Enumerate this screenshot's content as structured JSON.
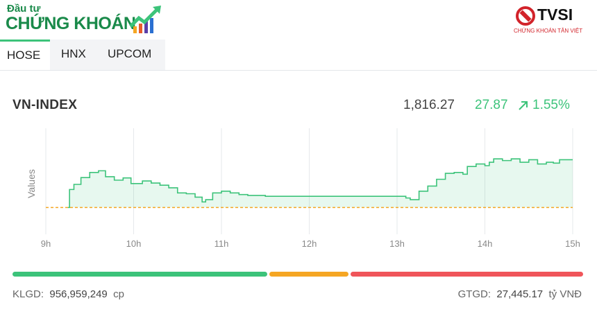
{
  "header": {
    "logo_small": "Đầu tư",
    "logo_big": "CHỨNG KHOÁN",
    "brand_name": "TVSI",
    "brand_sub": "CHỨNG KHOÁN TÂN VIỆT"
  },
  "tabs": [
    {
      "label": "HOSE",
      "active": true
    },
    {
      "label": "HNX",
      "active": false
    },
    {
      "label": "UPCOM",
      "active": false
    }
  ],
  "index": {
    "name": "VN-INDEX",
    "price": "1,816.27",
    "change": "27.87",
    "percent": "1.55%",
    "direction": "up"
  },
  "colors": {
    "up": "#3cc37a",
    "reference": "#f5a623",
    "down": "#f0555a"
  },
  "breadth": {
    "advance_fraction": 0.45,
    "unchanged_fraction": 0.14,
    "decline_fraction": 0.41
  },
  "footer": {
    "volume_label": "KLGD:",
    "volume_value": "956,959,249",
    "volume_unit": "cp",
    "value_label": "GTGD:",
    "value_value": "27,445.17",
    "value_unit": "tỷ VNĐ"
  },
  "chart_data": {
    "type": "area",
    "ylabel": "Values",
    "x_ticks": [
      "9h",
      "10h",
      "11h",
      "12h",
      "13h",
      "14h",
      "15h"
    ],
    "x_range": [
      9,
      15
    ],
    "y_range": [
      1780,
      1835
    ],
    "reference": 1788.4,
    "grid": "vertical",
    "series": [
      {
        "x": [
          9.25,
          9.27,
          9.32,
          9.4,
          9.5,
          9.6,
          9.68,
          9.78,
          9.88,
          9.97,
          10.1,
          10.2,
          10.3,
          10.4,
          10.5,
          10.6,
          10.7,
          10.78,
          10.82,
          10.9,
          11.0,
          11.1,
          11.2,
          11.3,
          11.45,
          11.5,
          11.6,
          12.0,
          12.5,
          13.0,
          13.1,
          13.15,
          13.25,
          13.35,
          13.45,
          13.55,
          13.65,
          13.75,
          13.8,
          13.9,
          14.0,
          14.05,
          14.1,
          14.2,
          14.3,
          14.4,
          14.5,
          14.6,
          14.7,
          14.78,
          14.85,
          14.95,
          15.0
        ],
        "values": [
          1788.4,
          1799,
          1802,
          1806,
          1809,
          1810,
          1806.5,
          1804.5,
          1805.8,
          1802.5,
          1804,
          1802.8,
          1801.5,
          1800,
          1797,
          1796.5,
          1794.5,
          1791.7,
          1793,
          1797,
          1798,
          1797,
          1796,
          1795.5,
          1795.5,
          1795,
          1795,
          1795,
          1795,
          1795,
          1794,
          1793,
          1798,
          1801,
          1805,
          1808.5,
          1809,
          1808,
          1812.5,
          1814,
          1813,
          1815,
          1817,
          1816,
          1817,
          1815,
          1816.5,
          1814,
          1815,
          1814.5,
          1816.5,
          1816.5,
          1816.5
        ]
      }
    ]
  }
}
